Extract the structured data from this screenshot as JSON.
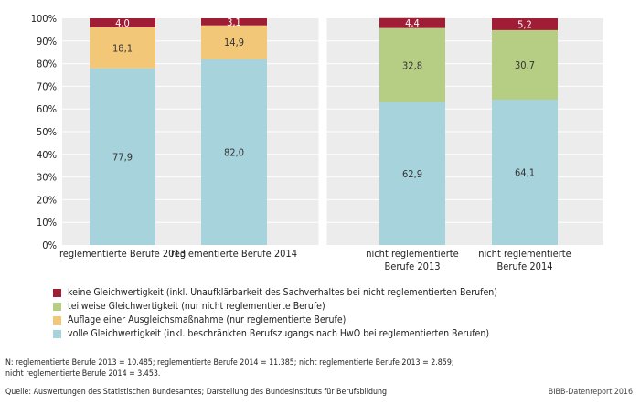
{
  "chart_data": {
    "type": "bar",
    "stacked": true,
    "categories": [
      [
        "reglementierte Berufe 2013"
      ],
      [
        "reglementierte Berufe 2014"
      ],
      [
        "nicht reglementierte",
        "Berufe 2013"
      ],
      [
        "nicht reglementierte",
        "Berufe 2014"
      ]
    ],
    "series": [
      {
        "name": "volle Gleichwertigkeit (inkl. beschränkten Berufszugangs nach HwO bei reglementierten Berufen)",
        "color": "#a7d3dd",
        "values": [
          77.9,
          82.0,
          62.9,
          64.1
        ],
        "labels": [
          "77,9",
          "82,0",
          "62,9",
          "64,1"
        ]
      },
      {
        "name": "Auflage einer Ausgleichsmaßnahme (nur reglementierte Berufe)",
        "color": "#f2c878",
        "values": [
          18.1,
          14.9,
          0,
          0
        ],
        "labels": [
          "18,1",
          "14,9",
          "",
          ""
        ]
      },
      {
        "name": "teilweise Gleichwertigkeit (nur nicht reglementierte Berufe)",
        "color": "#b6cd84",
        "values": [
          0,
          0,
          32.8,
          30.7
        ],
        "labels": [
          "",
          "",
          "32,8",
          "30,7"
        ]
      },
      {
        "name": "keine Gleichwertigkeit (inkl. Unaufklärbarkeit des Sachverhaltes bei nicht reglementierten Berufen)",
        "color": "#a01e35",
        "values": [
          4.0,
          3.1,
          4.4,
          5.2
        ],
        "labels": [
          "4,0",
          "3,1",
          "4,4",
          "5,2"
        ]
      }
    ],
    "yticks": [
      "0%",
      "10%",
      "20%",
      "30%",
      "40%",
      "50%",
      "60%",
      "70%",
      "80%",
      "90%",
      "100%"
    ],
    "ylim": [
      0,
      100
    ],
    "xlabel": "",
    "ylabel": "",
    "legend_order": [
      3,
      2,
      1,
      0
    ],
    "legend_position": "bottom-left",
    "grid": true,
    "plot_background": "#ececec"
  },
  "footer": {
    "note_line1": "N: reglementierte Berufe 2013 = 10.485; reglementierte Berufe 2014 = 11.385; nicht reglementierte Berufe 2013 = 2.859;",
    "note_line2": "nicht reglementierte Berufe 2014 = 3.453.",
    "source": "Quelle: Auswertungen des Statistischen Bundesamtes; Darstellung des Bundesinstituts für Berufsbildung",
    "credit": "BIBB-Datenreport 2016"
  }
}
